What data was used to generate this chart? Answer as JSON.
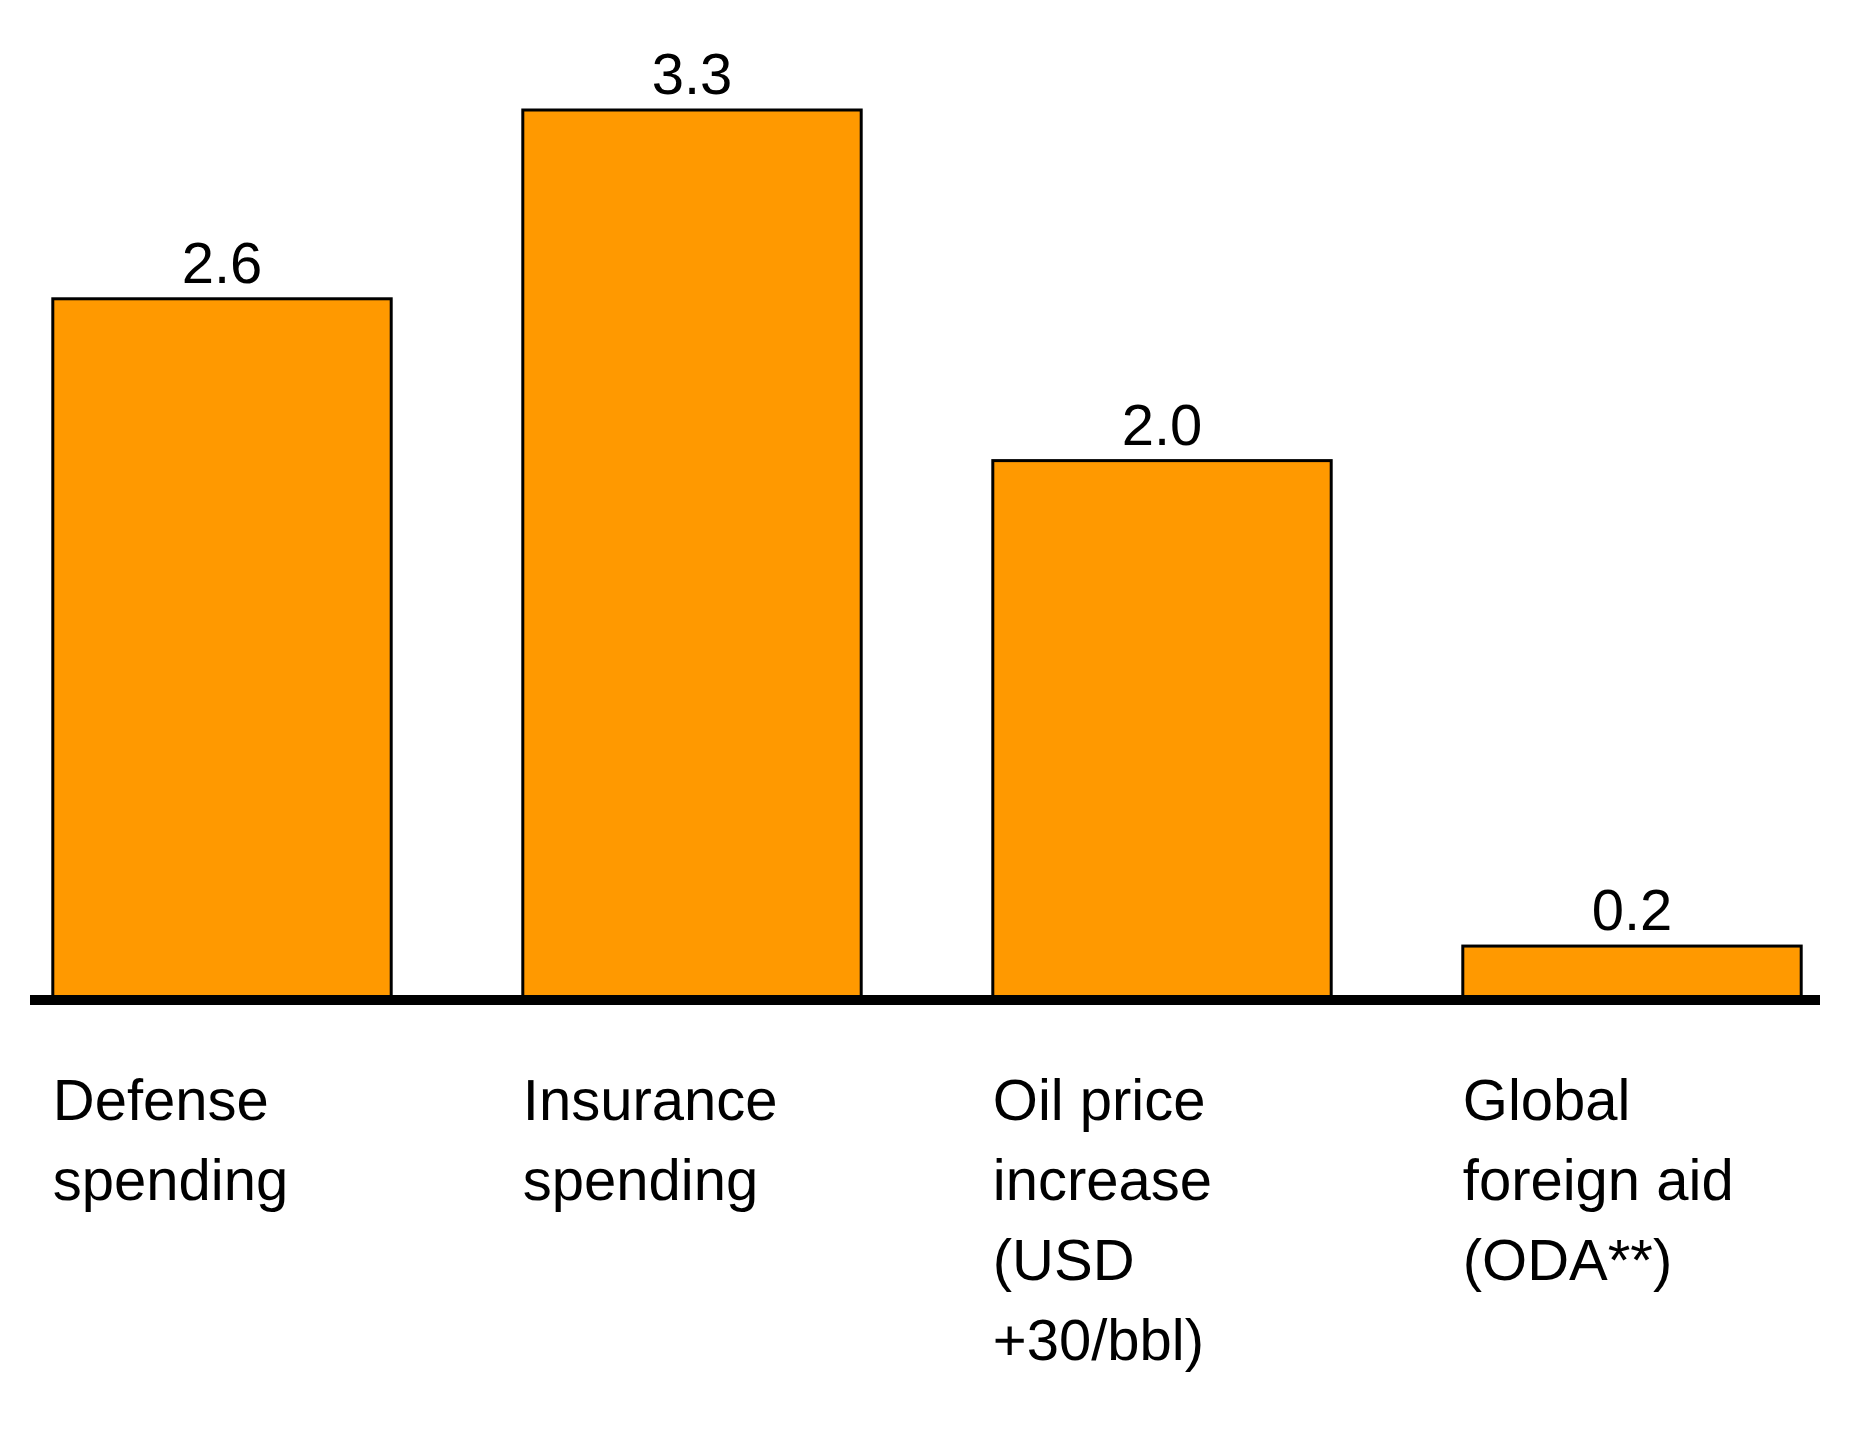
{
  "chart_data": {
    "type": "bar",
    "categories": [
      "Defense spending",
      "Insurance spending",
      "Oil price increase (USD +30/bbl)",
      "Global foreign aid (ODA**)"
    ],
    "values": [
      2.6,
      3.3,
      2.0,
      0.2
    ],
    "value_labels": [
      "2.6",
      "3.3",
      "2.0",
      "0.2"
    ],
    "color": "#ff9900"
  }
}
